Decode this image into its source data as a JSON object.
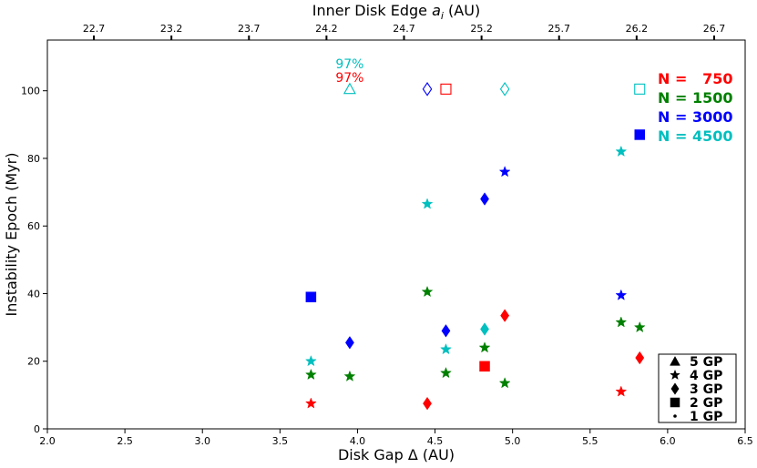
{
  "chart_data": {
    "type": "scatter",
    "title": "",
    "xlabel": "Disk Gap Δ (AU)",
    "ylabel": "Instability Epoch (Myr)",
    "top_xlabel": "Inner Disk Edge a_i (AU)",
    "top_xlabel_parts": {
      "main": "Inner Disk Edge ",
      "var": "a",
      "sub": "i",
      "unit": " (AU)"
    },
    "xlim": [
      2.0,
      6.5
    ],
    "ylim": [
      0,
      115
    ],
    "xticks": [
      2.0,
      2.5,
      3.0,
      3.5,
      4.0,
      4.5,
      5.0,
      5.5,
      6.0,
      6.5
    ],
    "xtick_labels": [
      "2.0",
      "2.5",
      "3.0",
      "3.5",
      "4.0",
      "4.5",
      "5.0",
      "5.5",
      "6.0",
      "6.5"
    ],
    "yticks": [
      0,
      20,
      40,
      60,
      80,
      100
    ],
    "ytick_labels": [
      "0",
      "20",
      "40",
      "60",
      "80",
      "100"
    ],
    "top_xticks": [
      2.3,
      2.8,
      3.3,
      3.8,
      4.3,
      4.8,
      5.3,
      5.8,
      6.3
    ],
    "top_xtick_labels": [
      "22.7",
      "23.2",
      "23.7",
      "24.2",
      "24.7",
      "25.2",
      "25.7",
      "26.2",
      "26.7"
    ],
    "grid": false,
    "legend_colors": [
      {
        "label": "N =   750",
        "color": "#ff0000"
      },
      {
        "label": "N = 1500",
        "color": "#008000"
      },
      {
        "label": "N = 3000",
        "color": "#0000ff"
      },
      {
        "label": "N = 4500",
        "color": "#00bfbf"
      }
    ],
    "legend_markers": [
      {
        "marker": "triangle",
        "label": "5 GP"
      },
      {
        "marker": "star",
        "label": "4 GP"
      },
      {
        "marker": "diamond",
        "label": "3 GP"
      },
      {
        "marker": "square",
        "label": "2 GP"
      },
      {
        "marker": "dot",
        "label": "1 GP"
      }
    ],
    "annotations": [
      {
        "text": "97%",
        "x": 3.95,
        "y": 108,
        "color": "#00bfbf"
      },
      {
        "text": "97%",
        "x": 3.95,
        "y": 104,
        "color": "#ff0000"
      }
    ],
    "series": [
      {
        "name": "N = 750",
        "color": "#ff0000",
        "points": [
          {
            "x": 3.7,
            "y": 7.5,
            "marker": "star",
            "filled": true
          },
          {
            "x": 4.45,
            "y": 7.5,
            "marker": "diamond",
            "filled": true
          },
          {
            "x": 4.82,
            "y": 18.5,
            "marker": "square",
            "filled": true
          },
          {
            "x": 4.95,
            "y": 33.5,
            "marker": "diamond",
            "filled": true
          },
          {
            "x": 5.7,
            "y": 11,
            "marker": "star",
            "filled": true
          },
          {
            "x": 5.82,
            "y": 21,
            "marker": "diamond",
            "filled": true
          },
          {
            "x": 4.57,
            "y": 100.5,
            "marker": "square",
            "filled": false
          }
        ]
      },
      {
        "name": "N = 1500",
        "color": "#008000",
        "points": [
          {
            "x": 3.7,
            "y": 16,
            "marker": "star",
            "filled": true
          },
          {
            "x": 3.95,
            "y": 15.5,
            "marker": "star",
            "filled": true
          },
          {
            "x": 4.45,
            "y": 40.5,
            "marker": "star",
            "filled": true
          },
          {
            "x": 4.57,
            "y": 16.5,
            "marker": "star",
            "filled": true
          },
          {
            "x": 4.82,
            "y": 24,
            "marker": "star",
            "filled": true
          },
          {
            "x": 4.95,
            "y": 13.5,
            "marker": "star",
            "filled": true
          },
          {
            "x": 5.7,
            "y": 31.5,
            "marker": "star",
            "filled": true
          },
          {
            "x": 5.82,
            "y": 30,
            "marker": "star",
            "filled": true
          }
        ]
      },
      {
        "name": "N = 3000",
        "color": "#0000ff",
        "points": [
          {
            "x": 3.7,
            "y": 39,
            "marker": "square",
            "filled": true
          },
          {
            "x": 3.95,
            "y": 25.5,
            "marker": "diamond",
            "filled": true
          },
          {
            "x": 4.57,
            "y": 29,
            "marker": "diamond",
            "filled": true
          },
          {
            "x": 4.82,
            "y": 68,
            "marker": "diamond",
            "filled": true
          },
          {
            "x": 4.95,
            "y": 76,
            "marker": "star",
            "filled": true
          },
          {
            "x": 5.7,
            "y": 39.5,
            "marker": "star",
            "filled": true
          },
          {
            "x": 5.82,
            "y": 87,
            "marker": "square",
            "filled": true
          },
          {
            "x": 4.45,
            "y": 100.5,
            "marker": "diamond",
            "filled": false
          }
        ]
      },
      {
        "name": "N = 4500",
        "color": "#00bfbf",
        "points": [
          {
            "x": 3.7,
            "y": 20,
            "marker": "star",
            "filled": true
          },
          {
            "x": 4.45,
            "y": 66.5,
            "marker": "star",
            "filled": true
          },
          {
            "x": 4.57,
            "y": 23.5,
            "marker": "star",
            "filled": true
          },
          {
            "x": 4.82,
            "y": 29.5,
            "marker": "diamond",
            "filled": true
          },
          {
            "x": 5.7,
            "y": 82,
            "marker": "star",
            "filled": true
          },
          {
            "x": 3.95,
            "y": 100.5,
            "marker": "triangle",
            "filled": false
          },
          {
            "x": 4.95,
            "y": 100.5,
            "marker": "diamond",
            "filled": false
          },
          {
            "x": 5.82,
            "y": 100.5,
            "marker": "square",
            "filled": false
          }
        ]
      }
    ]
  }
}
